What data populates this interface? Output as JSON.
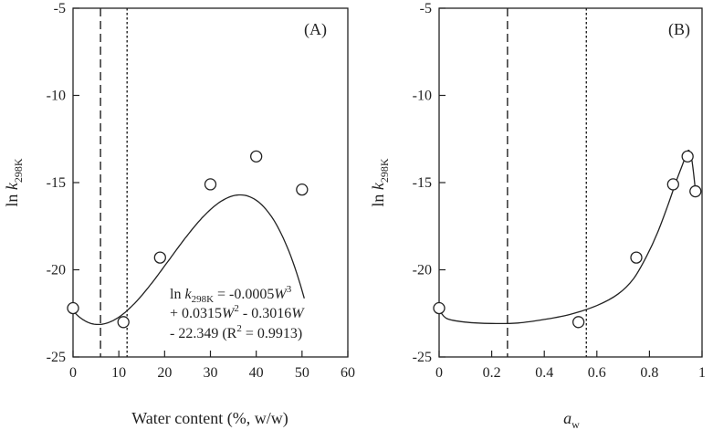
{
  "chart_data": [
    {
      "type": "scatter",
      "panel_label": "(A)",
      "xlabel": "Water content (%, w/w)",
      "ylabel": {
        "prefix": "ln ",
        "var": "k",
        "sub": "298K"
      },
      "xlim": [
        0,
        60
      ],
      "ylim": [
        -25,
        -5
      ],
      "xticks": [
        0,
        10,
        20,
        30,
        40,
        50,
        60
      ],
      "yticks": [
        -5,
        -10,
        -15,
        -20,
        -25
      ],
      "points": [
        {
          "x": 0,
          "y": -22.2
        },
        {
          "x": 11,
          "y": -23.0
        },
        {
          "x": 19,
          "y": -19.3
        },
        {
          "x": 30,
          "y": -15.1
        },
        {
          "x": 40,
          "y": -13.5
        },
        {
          "x": 50,
          "y": -15.4
        }
      ],
      "fit": {
        "type": "cubic",
        "coefficients": [
          -0.0005,
          0.0315,
          -0.3016,
          -22.349
        ],
        "x_range": [
          0,
          50.5
        ]
      },
      "vlines": [
        {
          "x": 6,
          "style": "dashed"
        },
        {
          "x": 11.8,
          "style": "dotted"
        }
      ],
      "equation": {
        "line1_prefix": "ln ",
        "line1_var": "k",
        "line1_sub": "298K",
        "line1_rest": " = -0.0005",
        "line1_w": "W",
        "line1_sup": "3",
        "line2_a": "+ 0.0315",
        "line2_w1": "W",
        "line2_sup": "2",
        "line2_b": " - 0.3016",
        "line2_w2": "W",
        "line3_a": "- 22.349 (R",
        "line3_sup": "2",
        "line3_b": " = 0.9913)"
      }
    },
    {
      "type": "scatter",
      "panel_label": "(B)",
      "xlabel": {
        "var": "a",
        "sub": "w"
      },
      "ylabel": {
        "prefix": "ln ",
        "var": "k",
        "sub": "298K"
      },
      "xlim": [
        0,
        1.0
      ],
      "ylim": [
        -25,
        -5
      ],
      "xticks": [
        0,
        0.2,
        0.4,
        0.6,
        0.8,
        1
      ],
      "xticklabels": [
        "0",
        "0.2",
        "0.4",
        "0.6",
        "0.8",
        "1"
      ],
      "yticks": [
        -5,
        -10,
        -15,
        -20,
        -25
      ],
      "points": [
        {
          "x": 0.0,
          "y": -22.2
        },
        {
          "x": 0.53,
          "y": -23.0
        },
        {
          "x": 0.75,
          "y": -19.3
        },
        {
          "x": 0.89,
          "y": -15.1
        },
        {
          "x": 0.945,
          "y": -13.5
        },
        {
          "x": 0.975,
          "y": -15.5
        }
      ],
      "curve": [
        [
          0.0,
          -22.3
        ],
        [
          0.03,
          -22.8
        ],
        [
          0.1,
          -23.0
        ],
        [
          0.2,
          -23.08
        ],
        [
          0.3,
          -23.05
        ],
        [
          0.4,
          -22.85
        ],
        [
          0.5,
          -22.55
        ],
        [
          0.6,
          -22.05
        ],
        [
          0.68,
          -21.4
        ],
        [
          0.74,
          -20.5
        ],
        [
          0.79,
          -19.2
        ],
        [
          0.83,
          -17.9
        ],
        [
          0.87,
          -16.3
        ],
        [
          0.9,
          -15.0
        ],
        [
          0.925,
          -14.0
        ],
        [
          0.94,
          -13.4
        ],
        [
          0.95,
          -13.15
        ],
        [
          0.96,
          -13.6
        ],
        [
          0.968,
          -14.5
        ],
        [
          0.975,
          -15.5
        ]
      ],
      "vlines": [
        {
          "x": 0.26,
          "style": "dashed"
        },
        {
          "x": 0.56,
          "style": "dotted"
        }
      ]
    }
  ]
}
